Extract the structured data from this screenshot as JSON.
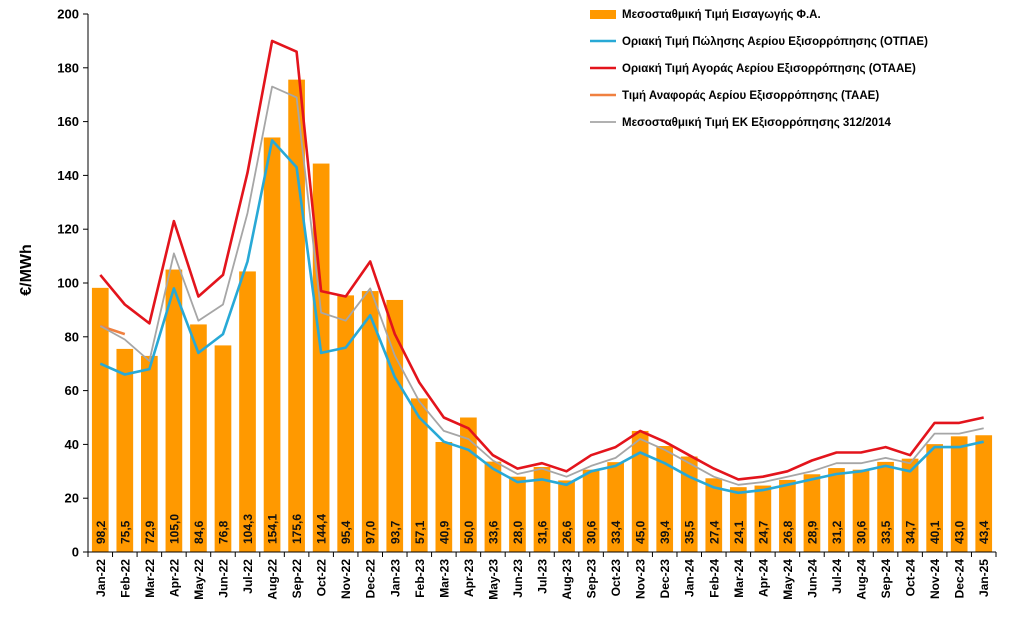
{
  "chart_data": {
    "type": "bar+line",
    "ylabel": "€/MWh",
    "ylim": [
      0,
      200
    ],
    "yticks": [
      0,
      20,
      40,
      60,
      80,
      100,
      120,
      140,
      160,
      180,
      200
    ],
    "grid": false,
    "legend_position": "top-right",
    "colors": {
      "bars": "#FF9900",
      "otpae": "#28A9D6",
      "otaae": "#E3141C",
      "taae": "#F08040",
      "ek": "#A6A6A6"
    },
    "categories": [
      "Jan-22",
      "Feb-22",
      "Mar-22",
      "Apr-22",
      "May-22",
      "Jun-22",
      "Jul-22",
      "Aug-22",
      "Sep-22",
      "Oct-22",
      "Nov-22",
      "Dec-22",
      "Jan-23",
      "Feb-23",
      "Mar-23",
      "Apr-23",
      "May-23",
      "Jun-23",
      "Jul-23",
      "Aug-23",
      "Sep-23",
      "Oct-23",
      "Nov-23",
      "Dec-23",
      "Jan-24",
      "Feb-24",
      "Mar-24",
      "Apr-24",
      "May-24",
      "Jun-24",
      "Jul-24",
      "Aug-24",
      "Sep-24",
      "Oct-24",
      "Nov-24",
      "Dec-24",
      "Jan-25"
    ],
    "bar_series": {
      "name": "Μεσοσταθμική  Τιμή Εισαγωγής Φ.Α.",
      "values": [
        98.2,
        75.5,
        72.9,
        105.0,
        84.6,
        76.8,
        104.3,
        154.1,
        175.6,
        144.4,
        95.4,
        97.0,
        93.7,
        57.1,
        40.9,
        50.0,
        33.6,
        28.0,
        31.6,
        26.6,
        30.6,
        33.4,
        45.0,
        39.4,
        35.5,
        27.4,
        24.1,
        24.7,
        26.8,
        28.9,
        31.2,
        30.6,
        33.5,
        34.7,
        40.1,
        43.0,
        43.4
      ],
      "labels": [
        "98,2",
        "75,5",
        "72,9",
        "105,0",
        "84,6",
        "76,8",
        "104,3",
        "154,1",
        "175,6",
        "144,4",
        "95,4",
        "97,0",
        "93,7",
        "57,1",
        "40,9",
        "50,0",
        "33,6",
        "28,0",
        "31,6",
        "26,6",
        "30,6",
        "33,4",
        "45,0",
        "39,4",
        "35,5",
        "27,4",
        "24,1",
        "24,7",
        "26,8",
        "28,9",
        "31,2",
        "30,6",
        "33,5",
        "34,7",
        "40,1",
        "43,0",
        "43,4"
      ]
    },
    "line_series": [
      {
        "key": "otpae",
        "name": "Οριακή Τιμή Πώλησης Αερίου Εξισορρόπησης  (ΟΤΠΑΕ)",
        "values": [
          70,
          66,
          68,
          98,
          74,
          81,
          108,
          153,
          143,
          74,
          76,
          88,
          65,
          50,
          41,
          38,
          31,
          26,
          27,
          25,
          30,
          32,
          37,
          33,
          28,
          24,
          22,
          23,
          25,
          27,
          29,
          30,
          32,
          30,
          39,
          39,
          41
        ]
      },
      {
        "key": "otaae",
        "name": "Οριακή Τιμή Αγοράς Αερίου Εξισορρόπησης   (ΟΤΑΑΕ)",
        "values": [
          103,
          92,
          85,
          123,
          95,
          103,
          141,
          190,
          186,
          97,
          95,
          108,
          81,
          63,
          50,
          46,
          36,
          31,
          33,
          30,
          36,
          39,
          45,
          41,
          36,
          31,
          27,
          28,
          30,
          34,
          37,
          37,
          39,
          36,
          48,
          48,
          50
        ]
      },
      {
        "key": "taae",
        "name": "Τιμή Αναφοράς Αερίου Εξισορρόπησης  (ΤΑΑΕ)",
        "values": [
          84,
          81,
          null,
          null,
          null,
          null,
          null,
          null,
          null,
          null,
          null,
          null,
          null,
          null,
          null,
          null,
          null,
          null,
          null,
          null,
          null,
          null,
          null,
          null,
          null,
          null,
          null,
          null,
          null,
          null,
          null,
          null,
          null,
          null,
          null,
          null,
          null
        ]
      },
      {
        "key": "ek",
        "name": "Μεσοσταθμική  Τιμή ΕΚ Εξισορρόπησης  312/2014",
        "values": [
          84,
          79,
          71,
          111,
          86,
          92,
          126,
          173,
          169,
          89,
          86,
          98,
          73,
          56,
          45,
          42,
          34,
          29,
          31,
          28,
          32,
          35,
          42,
          38,
          33,
          28,
          25,
          26,
          28,
          30,
          33,
          33,
          35,
          33,
          44,
          44,
          46
        ]
      }
    ]
  }
}
